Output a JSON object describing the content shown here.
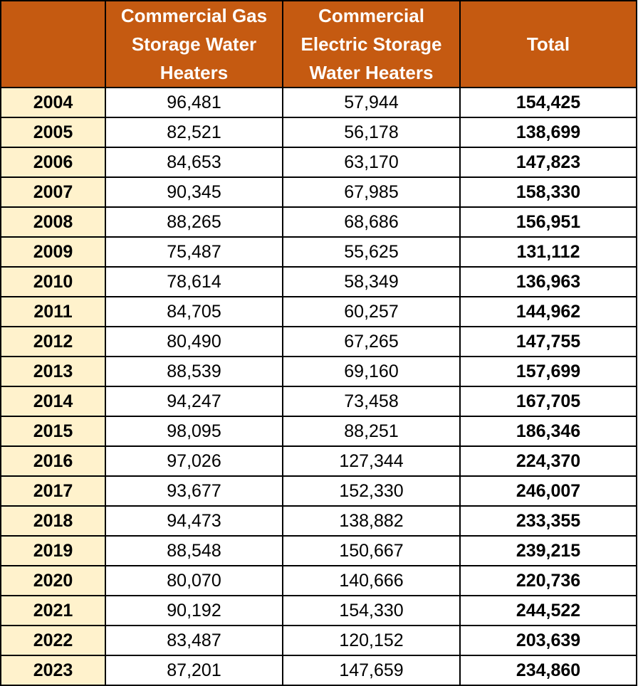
{
  "table": {
    "headers": [
      "",
      "Commercial Gas Storage Water Heaters",
      "Commercial Electric Storage Water Heaters",
      "Total"
    ],
    "rows": [
      {
        "year": "2004",
        "gas": "96,481",
        "electric": "57,944",
        "total": "154,425"
      },
      {
        "year": "2005",
        "gas": "82,521",
        "electric": "56,178",
        "total": "138,699"
      },
      {
        "year": "2006",
        "gas": "84,653",
        "electric": "63,170",
        "total": "147,823"
      },
      {
        "year": "2007",
        "gas": "90,345",
        "electric": "67,985",
        "total": "158,330"
      },
      {
        "year": "2008",
        "gas": "88,265",
        "electric": "68,686",
        "total": "156,951"
      },
      {
        "year": "2009",
        "gas": "75,487",
        "electric": "55,625",
        "total": "131,112"
      },
      {
        "year": "2010",
        "gas": "78,614",
        "electric": "58,349",
        "total": "136,963"
      },
      {
        "year": "2011",
        "gas": "84,705",
        "electric": "60,257",
        "total": "144,962"
      },
      {
        "year": "2012",
        "gas": "80,490",
        "electric": "67,265",
        "total": "147,755"
      },
      {
        "year": "2013",
        "gas": "88,539",
        "electric": "69,160",
        "total": "157,699"
      },
      {
        "year": "2014",
        "gas": "94,247",
        "electric": "73,458",
        "total": "167,705"
      },
      {
        "year": "2015",
        "gas": "98,095",
        "electric": "88,251",
        "total": "186,346"
      },
      {
        "year": "2016",
        "gas": "97,026",
        "electric": "127,344",
        "total": "224,370"
      },
      {
        "year": "2017",
        "gas": "93,677",
        "electric": "152,330",
        "total": "246,007"
      },
      {
        "year": "2018",
        "gas": "94,473",
        "electric": "138,882",
        "total": "233,355"
      },
      {
        "year": "2019",
        "gas": "88,548",
        "electric": "150,667",
        "total": "239,215"
      },
      {
        "year": "2020",
        "gas": "80,070",
        "electric": "140,666",
        "total": "220,736"
      },
      {
        "year": "2021",
        "gas": "90,192",
        "electric": "154,330",
        "total": "244,522"
      },
      {
        "year": "2022",
        "gas": "83,487",
        "electric": "120,152",
        "total": "203,639"
      },
      {
        "year": "2023",
        "gas": "87,201",
        "electric": "147,659",
        "total": "234,860"
      }
    ]
  },
  "colors": {
    "header_bg": "#c55a11",
    "header_text": "#ffffff",
    "year_bg": "#fff2cc",
    "border": "#000000"
  }
}
